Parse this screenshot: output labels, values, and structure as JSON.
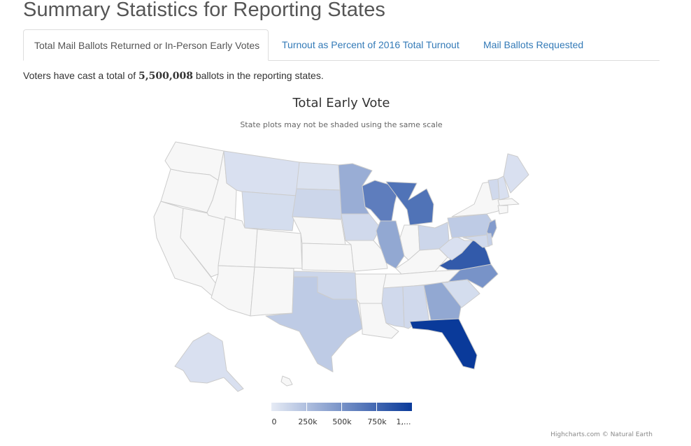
{
  "page": {
    "title": "Summary Statistics for Reporting States"
  },
  "tabs": [
    {
      "label": "Total Mail Ballots Returned or In-Person Early Votes",
      "active": true
    },
    {
      "label": "Turnout as Percent of 2016 Total Turnout",
      "active": false
    },
    {
      "label": "Mail Ballots Requested",
      "active": false
    }
  ],
  "summary": {
    "prefix": "Voters have cast a total of ",
    "total": "5,500,008",
    "suffix": " ballots in the reporting states."
  },
  "chart": {
    "title": "Total Early Vote",
    "subtitle": "State plots may not be shaded using the same scale",
    "credits": "Highcharts.com © Natural Earth"
  },
  "legend": {
    "labels": [
      "0",
      "250k",
      "500k",
      "750k",
      "1,..."
    ],
    "color_min": "#e6ebf5",
    "color_max": "#0a3a9a"
  },
  "map_data": {
    "no_data_color": "#f7f7f7",
    "border_color": "#cccccc",
    "states": [
      {
        "code": "WA",
        "level": 0
      },
      {
        "code": "OR",
        "level": 0
      },
      {
        "code": "CA",
        "level": 0
      },
      {
        "code": "NV",
        "level": 0
      },
      {
        "code": "ID",
        "level": 0
      },
      {
        "code": "UT",
        "level": 0
      },
      {
        "code": "AZ",
        "level": 0
      },
      {
        "code": "MT",
        "level": 0.06
      },
      {
        "code": "WY",
        "level": 0.08
      },
      {
        "code": "CO",
        "level": 0
      },
      {
        "code": "NM",
        "level": 0
      },
      {
        "code": "ND",
        "level": 0.05
      },
      {
        "code": "SD",
        "level": 0.12
      },
      {
        "code": "NE",
        "level": 0
      },
      {
        "code": "KS",
        "level": 0
      },
      {
        "code": "OK",
        "level": 0.12
      },
      {
        "code": "TX",
        "level": 0.18
      },
      {
        "code": "MN",
        "level": 0.35
      },
      {
        "code": "IA",
        "level": 0.1
      },
      {
        "code": "MO",
        "level": 0
      },
      {
        "code": "AR",
        "level": 0
      },
      {
        "code": "LA",
        "level": 0
      },
      {
        "code": "WI",
        "level": 0.62
      },
      {
        "code": "IL",
        "level": 0.38
      },
      {
        "code": "MI",
        "level": 0.68
      },
      {
        "code": "IN",
        "level": 0
      },
      {
        "code": "OH",
        "level": 0.12
      },
      {
        "code": "KY",
        "level": 0
      },
      {
        "code": "TN",
        "level": 0
      },
      {
        "code": "MS",
        "level": 0.1
      },
      {
        "code": "AL",
        "level": 0.1
      },
      {
        "code": "GA",
        "level": 0.38
      },
      {
        "code": "FL",
        "level": 1.0
      },
      {
        "code": "SC",
        "level": 0.08
      },
      {
        "code": "NC",
        "level": 0.5
      },
      {
        "code": "VA",
        "level": 0.82
      },
      {
        "code": "WV",
        "level": 0.06
      },
      {
        "code": "PA",
        "level": 0.18
      },
      {
        "code": "NY",
        "level": 0
      },
      {
        "code": "VT",
        "level": 0.1
      },
      {
        "code": "NH",
        "level": 0.06
      },
      {
        "code": "ME",
        "level": 0.06
      },
      {
        "code": "MA",
        "level": 0
      },
      {
        "code": "CT",
        "level": 0
      },
      {
        "code": "NJ",
        "level": 0.45
      },
      {
        "code": "MD",
        "level": 0.1
      },
      {
        "code": "DE",
        "level": 0.15
      },
      {
        "code": "AK",
        "level": 0.06
      },
      {
        "code": "HI",
        "level": 0
      }
    ]
  }
}
